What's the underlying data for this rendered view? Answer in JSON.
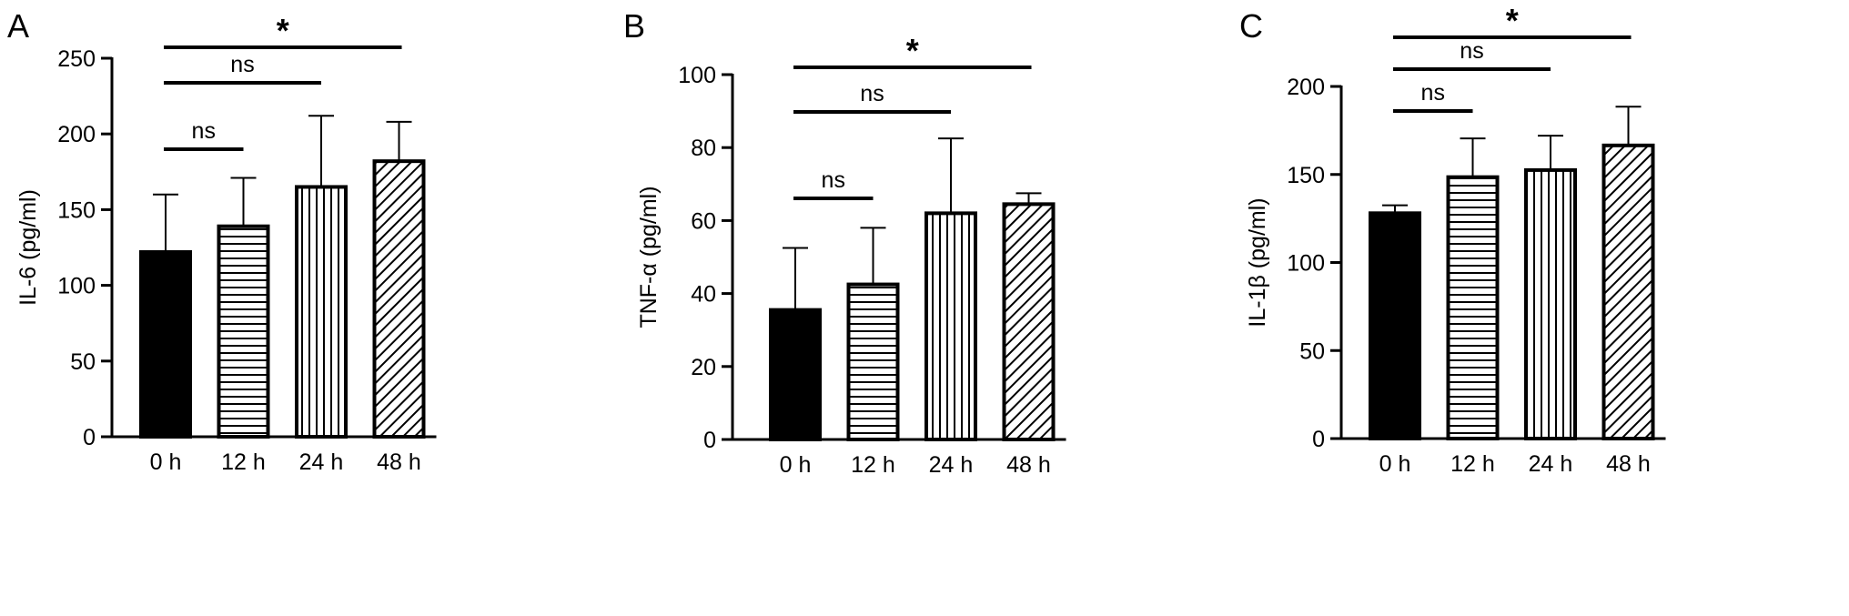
{
  "chart_data": [
    {
      "type": "bar",
      "panel_label": "A",
      "categories": [
        "0 h",
        "12 h",
        "24 h",
        "48 h"
      ],
      "values": [
        122,
        139,
        165,
        182
      ],
      "errors": [
        38,
        32,
        47,
        26
      ],
      "patterns": [
        "solid",
        "horizontal",
        "vertical",
        "diagonal"
      ],
      "ylabel": "IL-6 (pg/ml)",
      "ylim": [
        0,
        250
      ],
      "yticks": [
        "0",
        "50",
        "100",
        "150",
        "200",
        "250"
      ],
      "significance": [
        {
          "from": 0,
          "to": 1,
          "label": "ns"
        },
        {
          "from": 0,
          "to": 2,
          "label": "ns"
        },
        {
          "from": 0,
          "to": 3,
          "label": "*"
        }
      ]
    },
    {
      "type": "bar",
      "panel_label": "B",
      "categories": [
        "0 h",
        "12 h",
        "24 h",
        "48 h"
      ],
      "values": [
        35.5,
        42.5,
        62,
        64.5
      ],
      "errors": [
        17,
        15.5,
        20.5,
        3
      ],
      "patterns": [
        "solid",
        "horizontal",
        "vertical",
        "diagonal"
      ],
      "ylabel": "TNF-α (pg/ml)",
      "ylim": [
        0,
        100
      ],
      "yticks": [
        "0",
        "20",
        "40",
        "60",
        "80",
        "100"
      ],
      "significance": [
        {
          "from": 0,
          "to": 1,
          "label": "ns"
        },
        {
          "from": 0,
          "to": 2,
          "label": "ns"
        },
        {
          "from": 0,
          "to": 3,
          "label": "*"
        }
      ]
    },
    {
      "type": "bar",
      "panel_label": "C",
      "categories": [
        "0 h",
        "12 h",
        "24 h",
        "48 h"
      ],
      "values": [
        128,
        148.5,
        152.5,
        166.5
      ],
      "errors": [
        4.5,
        22,
        19.5,
        22
      ],
      "patterns": [
        "solid",
        "horizontal",
        "vertical",
        "diagonal"
      ],
      "ylabel": "IL-1β (pg/ml)",
      "ylim": [
        0,
        200
      ],
      "yticks": [
        "0",
        "50",
        "100",
        "150",
        "200"
      ],
      "significance": [
        {
          "from": 0,
          "to": 1,
          "label": "ns"
        },
        {
          "from": 0,
          "to": 2,
          "label": "ns"
        },
        {
          "from": 0,
          "to": 3,
          "label": "*"
        }
      ]
    }
  ]
}
